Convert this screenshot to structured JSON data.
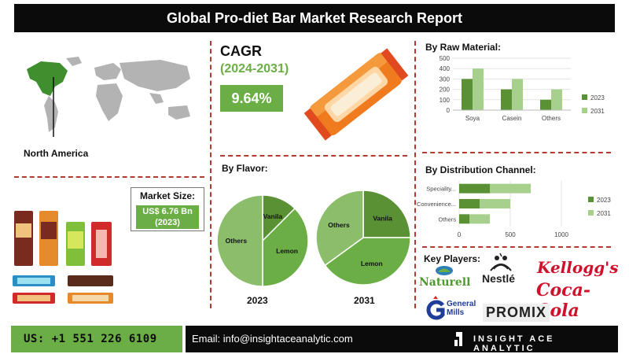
{
  "header": {
    "title": "Global Pro-diet Bar Market Research Report"
  },
  "region": {
    "label": "North America"
  },
  "market_size": {
    "title": "Market Size:",
    "value_line1": "US$ 6.76 Bn",
    "value_line2": "(2023)"
  },
  "cagr": {
    "label": "CAGR",
    "years": "(2024-2031)",
    "value": "9.64%"
  },
  "colors": {
    "dark_green": "#5a9135",
    "light_green": "#a8d08d",
    "mid_green": "#6aae45",
    "accent_red": "#b33a2e"
  },
  "icons": [
    "world-map-icon",
    "protein-bar-icon",
    "snack-bars-icon",
    "general-mills-g-icon",
    "insight-ace-logo-icon",
    "naturell-leaf-icon",
    "nestle-nest-icon"
  ],
  "chart_data": [
    {
      "type": "bar",
      "title": "By Raw Material:",
      "categories": [
        "Soya",
        "Casein",
        "Others"
      ],
      "ylim": [
        0,
        500
      ],
      "yticks": [
        0,
        100,
        200,
        300,
        400,
        500
      ],
      "series": [
        {
          "name": "2023",
          "values": [
            300,
            200,
            100
          ],
          "color": "#5a9135"
        },
        {
          "name": "2031",
          "values": [
            400,
            300,
            200
          ],
          "color": "#a8d08d"
        }
      ],
      "legend": "right"
    },
    {
      "type": "bar",
      "orientation": "horizontal",
      "stacked": true,
      "title": "By Distribution Channel:",
      "categories": [
        "Speciality...",
        "Convenience...",
        "Others"
      ],
      "xlim": [
        0,
        1000
      ],
      "xticks": [
        0,
        500,
        1000
      ],
      "series": [
        {
          "name": "2023",
          "values": [
            300,
            200,
            100
          ],
          "color": "#5a9135"
        },
        {
          "name": "2031",
          "values": [
            400,
            300,
            200
          ],
          "color": "#a8d08d"
        }
      ],
      "legend": "right"
    },
    {
      "type": "pie",
      "title": "By Flavor:",
      "label": "2023",
      "slices": [
        {
          "name": "Vanila",
          "value": 12.5,
          "color": "#5a9135"
        },
        {
          "name": "Lemon",
          "value": 37.5,
          "color": "#6aae45"
        },
        {
          "name": "Others",
          "value": 50,
          "color": "#8bbd6b"
        }
      ]
    },
    {
      "type": "pie",
      "label": "2031",
      "slices": [
        {
          "name": "Vanila",
          "value": 25,
          "color": "#5a9135"
        },
        {
          "name": "Lemon",
          "value": 40,
          "color": "#6aae45"
        },
        {
          "name": "Others",
          "value": 35,
          "color": "#8bbd6b"
        }
      ]
    }
  ],
  "key_players": {
    "title": "Key Players:",
    "logos": [
      "Naturell",
      "Nestlé",
      "Kellogg's",
      "Coca-Cola",
      "General Mills",
      "PROMIX"
    ]
  },
  "footer": {
    "phone": "US: +1 551 226 6109",
    "email": "Email: info@insightaceanalytic.com",
    "brand": "INSIGHT ACE ANALYTIC"
  }
}
